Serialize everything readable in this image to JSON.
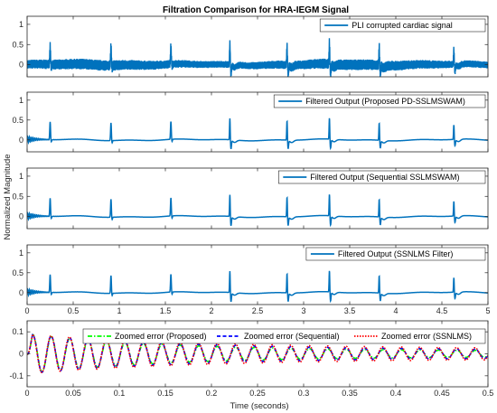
{
  "figure": {
    "title": "Filtration Comparison for HRA-IEGM Signal",
    "ylabel": "Normalized Magnitude",
    "xlabel": "Time (seconds)"
  },
  "colors": {
    "signal": "#0072BD",
    "proposed": "#00FF00",
    "sequential": "#0000FF",
    "ssnlms": "#FF0000"
  },
  "chart_data": [
    {
      "type": "line",
      "panel": 1,
      "legend": "PLI corrupted cardiac signal",
      "legend_position": "top-right",
      "xlim": [
        0,
        5
      ],
      "ylim": [
        -0.3,
        1.2
      ],
      "yticks": [
        0,
        0.5,
        1
      ],
      "xticks": [
        0,
        0.5,
        1,
        1.5,
        2,
        2.5,
        3,
        3.5,
        4,
        4.5,
        5
      ],
      "show_xtick_labels": false,
      "signal": "noisy",
      "beats": [
        {
          "t": 0.25,
          "amp": 0.45,
          "shape": "atrial"
        },
        {
          "t": 0.91,
          "amp": 0.45,
          "shape": "atrial"
        },
        {
          "t": 1.56,
          "amp": 0.45,
          "shape": "atrial"
        },
        {
          "t": 2.2,
          "amp": 0.55,
          "shape": "biphasic"
        },
        {
          "t": 2.82,
          "amp": 0.5,
          "shape": "biphasic"
        },
        {
          "t": 3.28,
          "amp": 0.55,
          "shape": "biphasic"
        },
        {
          "t": 3.82,
          "amp": 0.45,
          "shape": "biphasic"
        },
        {
          "t": 4.63,
          "amp": 0.38,
          "shape": "biphasic"
        }
      ]
    },
    {
      "type": "line",
      "panel": 2,
      "legend": "Filtered Output (Proposed PD-SSLMSWAM)",
      "legend_position": "top-right",
      "xlim": [
        0,
        5
      ],
      "ylim": [
        -0.3,
        1.2
      ],
      "yticks": [
        0,
        0.5,
        1
      ],
      "xticks": [
        0,
        0.5,
        1,
        1.5,
        2,
        2.5,
        3,
        3.5,
        4,
        4.5,
        5
      ],
      "show_xtick_labels": false,
      "signal": "filtered"
    },
    {
      "type": "line",
      "panel": 3,
      "legend": "Filtered Output (Sequential SSLMSWAM)",
      "legend_position": "top-right",
      "xlim": [
        0,
        5
      ],
      "ylim": [
        -0.3,
        1.2
      ],
      "yticks": [
        0,
        0.5,
        1
      ],
      "xticks": [
        0,
        0.5,
        1,
        1.5,
        2,
        2.5,
        3,
        3.5,
        4,
        4.5,
        5
      ],
      "show_xtick_labels": false,
      "signal": "filtered"
    },
    {
      "type": "line",
      "panel": 4,
      "legend": "Filtered Output (SSNLMS Filter)",
      "legend_position": "top-right",
      "xlim": [
        0,
        5
      ],
      "ylim": [
        -0.3,
        1.2
      ],
      "yticks": [
        0,
        0.5,
        1
      ],
      "xticks": [
        0,
        0.5,
        1,
        1.5,
        2,
        2.5,
        3,
        3.5,
        4,
        4.5,
        5
      ],
      "xtick_labels": [
        "0",
        "0.5",
        "1",
        "1.5",
        "2",
        "2.5",
        "3",
        "3.5",
        "4",
        "4.5",
        "5"
      ],
      "show_xtick_labels": true,
      "signal": "filtered"
    },
    {
      "type": "line",
      "panel": 5,
      "legend_position": "top",
      "xlim": [
        0,
        0.5
      ],
      "ylim": [
        -0.15,
        0.15
      ],
      "yticks": [
        -0.1,
        0,
        0.1
      ],
      "ytick_labels": [
        "-0.1",
        "0",
        "0.1"
      ],
      "xticks": [
        0,
        0.05,
        0.1,
        0.15,
        0.2,
        0.25,
        0.3,
        0.35,
        0.4,
        0.45,
        0.5
      ],
      "xtick_labels": [
        "0",
        "0.05",
        "0.1",
        "0.15",
        "0.2",
        "0.25",
        "0.3",
        "0.35",
        "0.4",
        "0.45",
        "0.5"
      ],
      "show_xtick_labels": true,
      "pli_frequency_hz": 50,
      "series": [
        {
          "name": "Zoomed error (Proposed)",
          "style": "dashdot",
          "peak_amplitude": 0.09,
          "end_amplitude": 0.012
        },
        {
          "name": "Zoomed error (Sequential)",
          "style": "dashed",
          "peak_amplitude": 0.09,
          "end_amplitude": 0.016
        },
        {
          "name": "Zoomed error (SSNLMS)",
          "style": "dotted",
          "peak_amplitude": 0.09,
          "end_amplitude": 0.02
        }
      ]
    }
  ]
}
